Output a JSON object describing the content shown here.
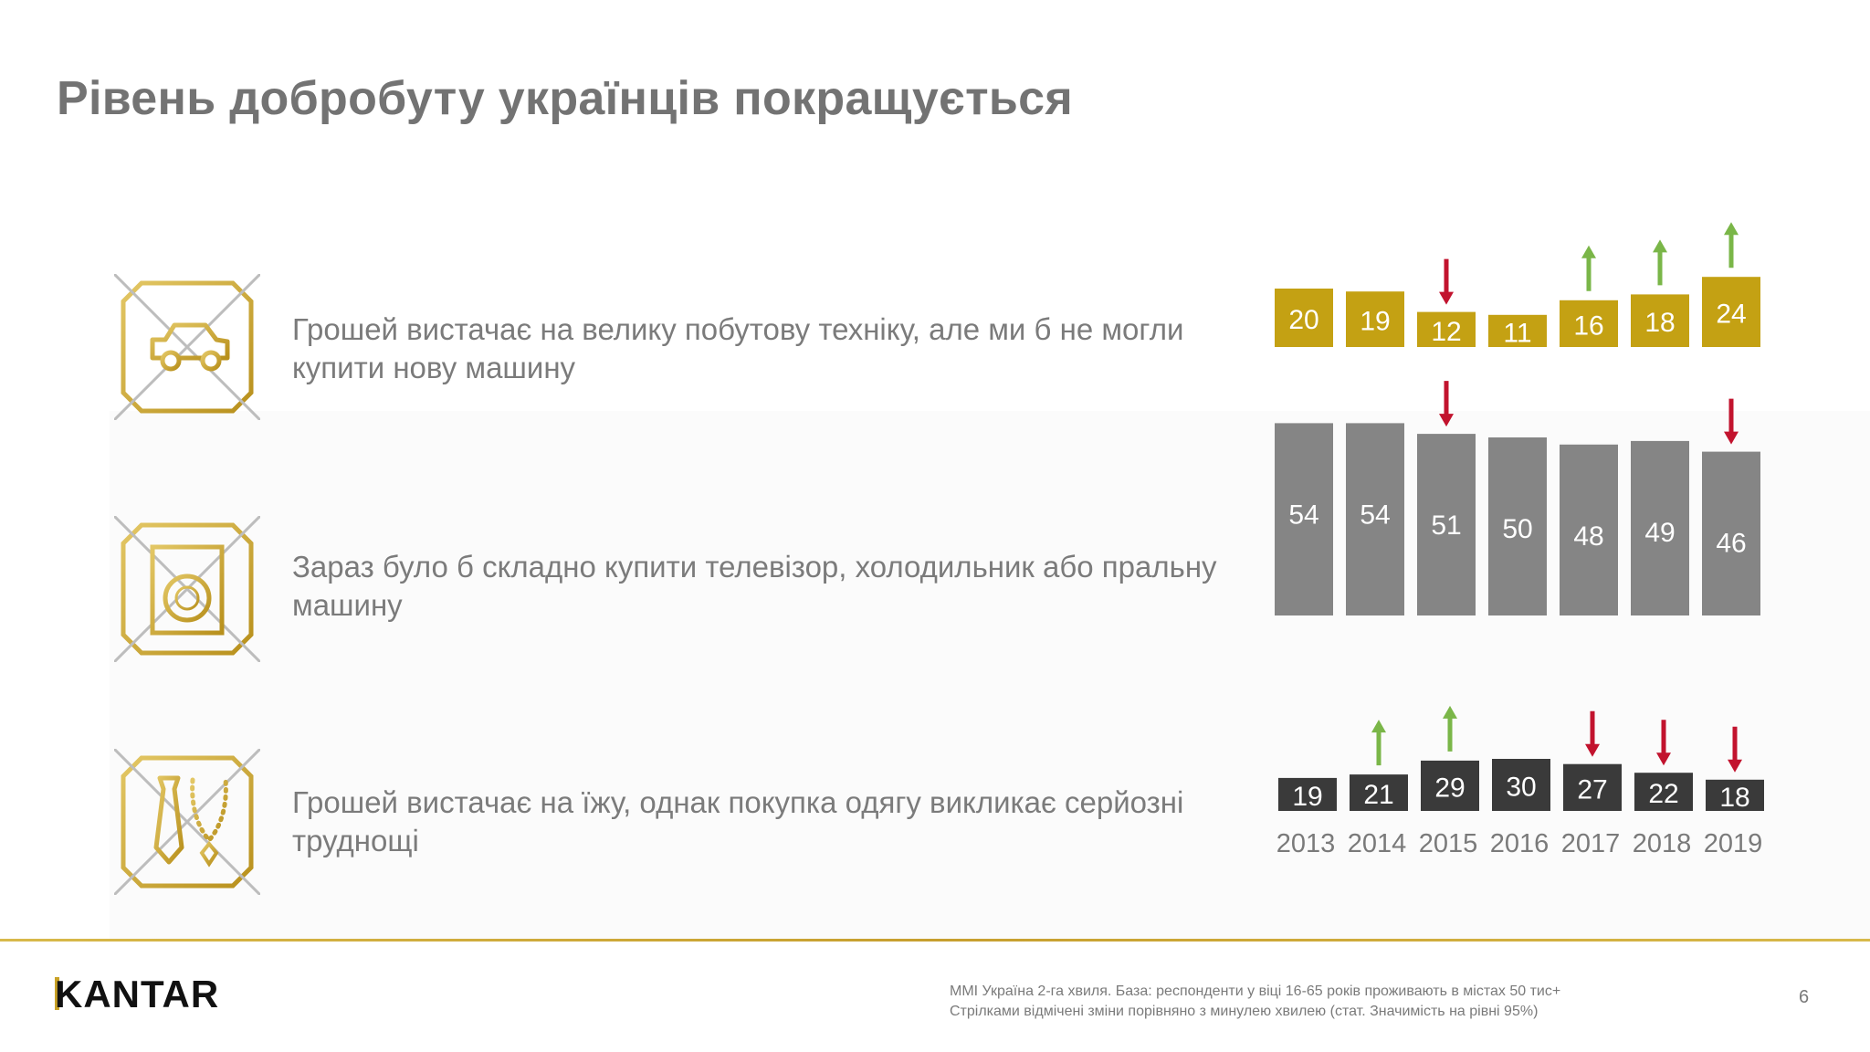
{
  "title": "Рівень добробуту українців покращується",
  "rows": [
    {
      "icon": "crossed-car-icon",
      "text": "Грошей вистачає на велику побутову техніку, але ми б не могли купити нову машину"
    },
    {
      "icon": "crossed-washing-machine-icon",
      "text": "Зараз було б складно купити телевізор, холодильник або пральну машину"
    },
    {
      "icon": "crossed-tie-necklace-icon",
      "text": "Грошей вистачає на їжу, однак покупка одягу викликає серйозні труднощі"
    }
  ],
  "colors": {
    "gold": "#c4a113",
    "gray": "#858585",
    "dark": "#3a3a3a",
    "up_arrow": "#7ab648",
    "down_arrow": "#c2132e",
    "icon_gold": "#c9a227"
  },
  "chart_data": {
    "type": "bar",
    "categories": [
      "2013",
      "2014",
      "2015",
      "2016",
      "2017",
      "2018",
      "2019"
    ],
    "series": [
      {
        "values": [
          20,
          19,
          12,
          11,
          16,
          18,
          24
        ],
        "changes": [
          "none",
          "none",
          "down",
          "none",
          "up",
          "up",
          "up"
        ]
      },
      {
        "values": [
          54,
          54,
          51,
          50,
          48,
          49,
          46
        ],
        "changes": [
          "none",
          "none",
          "down",
          "none",
          "none",
          "none",
          "down"
        ]
      },
      {
        "values": [
          19,
          21,
          29,
          30,
          27,
          22,
          18
        ],
        "changes": [
          "none",
          "up",
          "up",
          "none",
          "down",
          "down",
          "down"
        ]
      }
    ]
  },
  "footer": {
    "logo": "KANTAR",
    "note_line1": "MMI Україна 2-га хвиля. База: респонденти у віці 16-65 років проживають в містах 50 тис+",
    "note_line2": "Стрілками відмічені зміни порівняно з минулею хвилею (стат. Значимість на рівні 95%)",
    "page": "6"
  }
}
